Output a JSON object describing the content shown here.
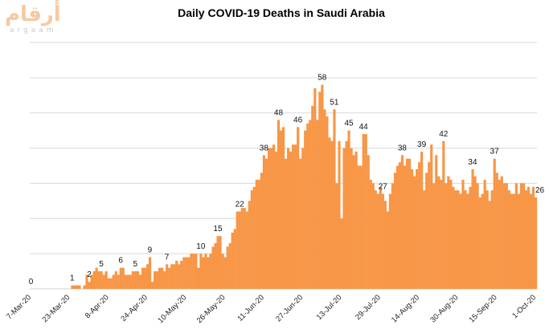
{
  "logo": {
    "arabic": "أرقام",
    "latin": "argaam"
  },
  "chart_data": {
    "type": "bar",
    "title": "Daily COVID-19 Deaths in Saudi Arabia",
    "xlabel": "",
    "ylabel": "",
    "ylim": [
      0,
      70
    ],
    "grid": true,
    "y_gridlines": [
      0,
      10,
      20,
      30,
      40,
      50,
      60,
      70
    ],
    "color": "#f79646",
    "x": [
      "7-Mar-20",
      "8-Mar-20",
      "9-Mar-20",
      "10-Mar-20",
      "11-Mar-20",
      "12-Mar-20",
      "13-Mar-20",
      "14-Mar-20",
      "15-Mar-20",
      "16-Mar-20",
      "17-Mar-20",
      "18-Mar-20",
      "19-Mar-20",
      "20-Mar-20",
      "21-Mar-20",
      "22-Mar-20",
      "23-Mar-20",
      "24-Mar-20",
      "25-Mar-20",
      "26-Mar-20",
      "27-Mar-20",
      "28-Mar-20",
      "29-Mar-20",
      "30-Mar-20",
      "31-Mar-20",
      "1-Apr-20",
      "2-Apr-20",
      "3-Apr-20",
      "4-Apr-20",
      "5-Apr-20",
      "6-Apr-20",
      "7-Apr-20",
      "8-Apr-20",
      "9-Apr-20",
      "10-Apr-20",
      "11-Apr-20",
      "12-Apr-20",
      "13-Apr-20",
      "14-Apr-20",
      "15-Apr-20",
      "16-Apr-20",
      "17-Apr-20",
      "18-Apr-20",
      "19-Apr-20",
      "20-Apr-20",
      "21-Apr-20",
      "22-Apr-20",
      "23-Apr-20",
      "24-Apr-20",
      "25-Apr-20",
      "26-Apr-20",
      "27-Apr-20",
      "28-Apr-20",
      "29-Apr-20",
      "30-Apr-20",
      "1-May-20",
      "2-May-20",
      "3-May-20",
      "4-May-20",
      "5-May-20",
      "6-May-20",
      "7-May-20",
      "8-May-20",
      "9-May-20",
      "10-May-20",
      "11-May-20",
      "12-May-20",
      "13-May-20",
      "14-May-20",
      "15-May-20",
      "16-May-20",
      "17-May-20",
      "18-May-20",
      "19-May-20",
      "20-May-20",
      "21-May-20",
      "22-May-20",
      "23-May-20",
      "24-May-20",
      "25-May-20",
      "26-May-20",
      "27-May-20",
      "28-May-20",
      "29-May-20",
      "30-May-20",
      "31-May-20",
      "1-Jun-20",
      "2-Jun-20",
      "3-Jun-20",
      "4-Jun-20",
      "5-Jun-20",
      "6-Jun-20",
      "7-Jun-20",
      "8-Jun-20",
      "9-Jun-20",
      "10-Jun-20",
      "11-Jun-20",
      "12-Jun-20",
      "13-Jun-20",
      "14-Jun-20",
      "15-Jun-20",
      "16-Jun-20",
      "17-Jun-20",
      "18-Jun-20",
      "19-Jun-20",
      "20-Jun-20",
      "21-Jun-20",
      "22-Jun-20",
      "23-Jun-20",
      "24-Jun-20",
      "25-Jun-20",
      "26-Jun-20",
      "27-Jun-20",
      "28-Jun-20",
      "29-Jun-20",
      "30-Jun-20",
      "1-Jul-20",
      "2-Jul-20",
      "3-Jul-20",
      "4-Jul-20",
      "5-Jul-20",
      "6-Jul-20",
      "7-Jul-20",
      "8-Jul-20",
      "9-Jul-20",
      "10-Jul-20",
      "11-Jul-20",
      "12-Jul-20",
      "13-Jul-20",
      "14-Jul-20",
      "15-Jul-20",
      "16-Jul-20",
      "17-Jul-20",
      "18-Jul-20",
      "19-Jul-20",
      "20-Jul-20",
      "21-Jul-20",
      "22-Jul-20",
      "23-Jul-20",
      "24-Jul-20",
      "25-Jul-20",
      "26-Jul-20",
      "27-Jul-20",
      "28-Jul-20",
      "29-Jul-20",
      "30-Jul-20",
      "31-Jul-20",
      "1-Aug-20",
      "2-Aug-20",
      "3-Aug-20",
      "4-Aug-20",
      "5-Aug-20",
      "6-Aug-20",
      "7-Aug-20",
      "8-Aug-20",
      "9-Aug-20",
      "10-Aug-20",
      "11-Aug-20",
      "12-Aug-20",
      "13-Aug-20",
      "14-Aug-20",
      "15-Aug-20",
      "16-Aug-20",
      "17-Aug-20",
      "18-Aug-20",
      "19-Aug-20",
      "20-Aug-20",
      "21-Aug-20",
      "22-Aug-20",
      "23-Aug-20",
      "24-Aug-20",
      "25-Aug-20",
      "26-Aug-20",
      "27-Aug-20",
      "28-Aug-20",
      "29-Aug-20",
      "30-Aug-20",
      "31-Aug-20",
      "1-Sep-20",
      "2-Sep-20",
      "3-Sep-20",
      "4-Sep-20",
      "5-Sep-20",
      "6-Sep-20",
      "7-Sep-20",
      "8-Sep-20",
      "9-Sep-20",
      "10-Sep-20",
      "11-Sep-20",
      "12-Sep-20",
      "13-Sep-20",
      "14-Sep-20",
      "15-Sep-20",
      "16-Sep-20",
      "17-Sep-20",
      "18-Sep-20",
      "19-Sep-20",
      "20-Sep-20",
      "21-Sep-20",
      "22-Sep-20",
      "23-Sep-20",
      "24-Sep-20",
      "25-Sep-20",
      "26-Sep-20",
      "27-Sep-20",
      "28-Sep-20",
      "29-Sep-20",
      "30-Sep-20",
      "1-Oct-20"
    ],
    "values": [
      0,
      0,
      0,
      0,
      0,
      0,
      0,
      0,
      0,
      0,
      0,
      0,
      0,
      0,
      0,
      0,
      0,
      1,
      1,
      1,
      1,
      0,
      1,
      4,
      2,
      4,
      5,
      6,
      5,
      5,
      4,
      5,
      3,
      3,
      4,
      5,
      4,
      6,
      6,
      4,
      4,
      4,
      5,
      5,
      5,
      4,
      6,
      6,
      7,
      9,
      2,
      5,
      5,
      6,
      6,
      5,
      7,
      6,
      7,
      7,
      8,
      7,
      8,
      9,
      9,
      9,
      10,
      10,
      10,
      6,
      10,
      9,
      10,
      9,
      10,
      12,
      13,
      15,
      15,
      10,
      9,
      12,
      13,
      16,
      17,
      22,
      22,
      23,
      23,
      22,
      25,
      28,
      29,
      31,
      31,
      33,
      38,
      37,
      40,
      40,
      41,
      39,
      48,
      45,
      46,
      37,
      40,
      39,
      41,
      41,
      46,
      37,
      40,
      45,
      47,
      48,
      52,
      57,
      48,
      56,
      58,
      51,
      49,
      43,
      42,
      51,
      30,
      42,
      20,
      40,
      42,
      45,
      40,
      38,
      39,
      35,
      35,
      44,
      44,
      38,
      31,
      30,
      28,
      27,
      29,
      27,
      25,
      22,
      27,
      30,
      33,
      35,
      36,
      38,
      35,
      37,
      37,
      34,
      32,
      34,
      36,
      39,
      28,
      33,
      36,
      41,
      30,
      38,
      32,
      31,
      42,
      30,
      32,
      31,
      29,
      28,
      28,
      27,
      31,
      28,
      27,
      29,
      34,
      32,
      30,
      26,
      27,
      31,
      28,
      25,
      28,
      37,
      33,
      31,
      32,
      30,
      30,
      28,
      27,
      27,
      30,
      27,
      30,
      30,
      28,
      29,
      27,
      29,
      26
    ],
    "tick_labels": [
      "7-Mar-20",
      "23-Mar-20",
      "8-Apr-20",
      "24-Apr-20",
      "10-May-20",
      "26-May-20",
      "11-Jun-20",
      "27-Jun-20",
      "13-Jul-20",
      "29-Jul-20",
      "14-Aug-20",
      "30-Aug-20",
      "15-Sep-20",
      "1-Oct-20"
    ],
    "data_labels": [
      {
        "x": "7-Mar-20",
        "label": "0"
      },
      {
        "x": "24-Mar-20",
        "label": "1"
      },
      {
        "x": "31-Mar-20",
        "label": "2"
      },
      {
        "x": "5-Apr-20",
        "label": "5"
      },
      {
        "x": "13-Apr-20",
        "label": "6"
      },
      {
        "x": "19-Apr-20",
        "label": "5"
      },
      {
        "x": "25-Apr-20",
        "label": "9"
      },
      {
        "x": "2-May-20",
        "label": "7"
      },
      {
        "x": "16-May-20",
        "label": "10"
      },
      {
        "x": "23-May-20",
        "label": "15"
      },
      {
        "x": "1-Jun-20",
        "label": "22"
      },
      {
        "x": "11-Jun-20",
        "label": "38"
      },
      {
        "x": "17-Jun-20",
        "label": "48"
      },
      {
        "x": "25-Jun-20",
        "label": "46"
      },
      {
        "x": "5-Jul-20",
        "label": "58"
      },
      {
        "x": "10-Jul-20",
        "label": "51"
      },
      {
        "x": "16-Jul-20",
        "label": "45"
      },
      {
        "x": "22-Jul-20",
        "label": "44"
      },
      {
        "x": "30-Jul-20",
        "label": "27"
      },
      {
        "x": "7-Aug-20",
        "label": "38"
      },
      {
        "x": "15-Aug-20",
        "label": "39"
      },
      {
        "x": "24-Aug-20",
        "label": "42"
      },
      {
        "x": "5-Sep-20",
        "label": "34"
      },
      {
        "x": "14-Sep-20",
        "label": "37"
      },
      {
        "x": "1-Oct-20",
        "label": "26"
      }
    ]
  }
}
